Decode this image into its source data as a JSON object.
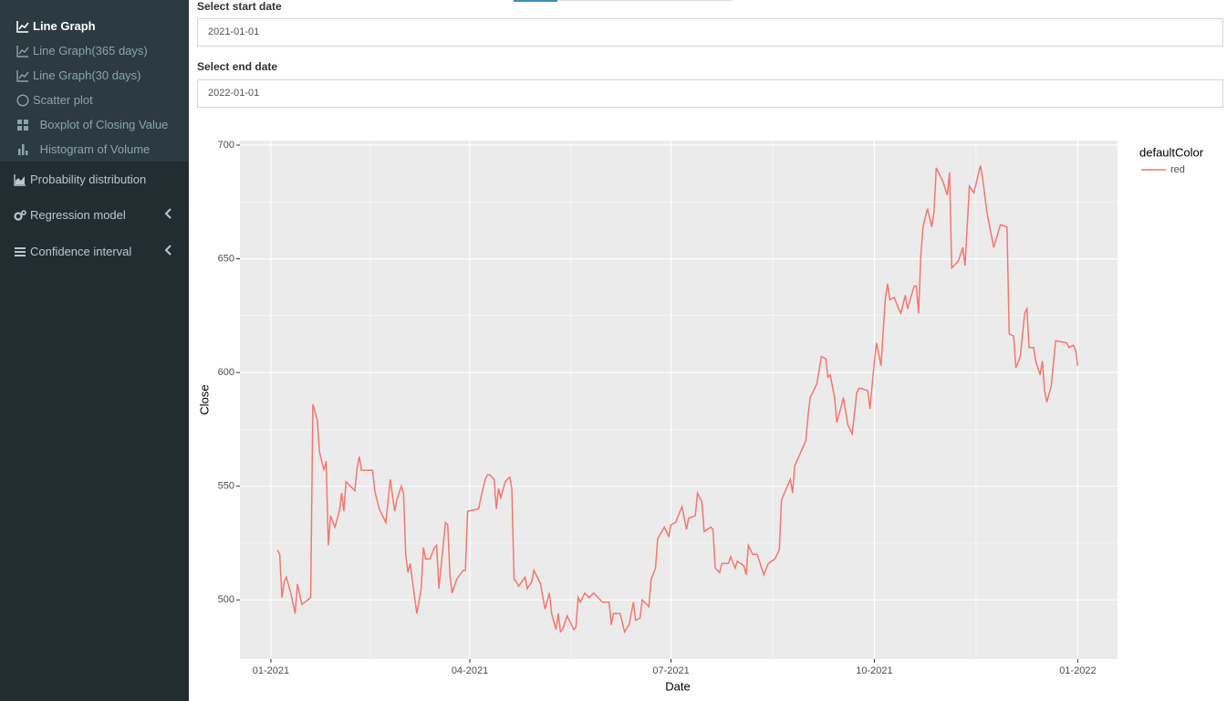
{
  "sidebar": {
    "items": [
      "Line Graph",
      "Line Graph(365 days)",
      "Line Graph(30 days)",
      "Scatter plot",
      "Boxplot of Closing Value",
      "Histogram of Volume",
      "Probability distribution",
      "Regression model",
      "Confidence interval"
    ]
  },
  "inputs": [
    {
      "label": "Select start date",
      "value": "2021-01-01"
    },
    {
      "label": "Select end date",
      "value": "2022-01-01"
    }
  ],
  "chart_data": {
    "type": "line",
    "xlabel": "Date",
    "ylabel": "Close",
    "legend_title": "defaultColor",
    "grid": true,
    "xlim": [
      -14,
      383
    ],
    "ylim": [
      474,
      702
    ],
    "xticks": [
      {
        "value": 0,
        "label": "01-2021"
      },
      {
        "value": 90,
        "label": "04-2021"
      },
      {
        "value": 181,
        "label": "07-2021"
      },
      {
        "value": 273,
        "label": "10-2021"
      },
      {
        "value": 365,
        "label": "01-2022"
      }
    ],
    "yticks": [
      500,
      550,
      600,
      650,
      700
    ],
    "x": [
      3,
      4,
      5,
      6,
      7,
      9,
      11,
      12,
      14,
      18,
      19,
      21,
      22,
      24,
      25,
      26,
      27,
      29,
      31,
      32,
      33,
      34,
      38,
      39,
      40,
      41,
      46,
      47,
      49,
      52,
      54,
      56,
      57,
      59,
      60,
      61,
      62,
      63,
      66,
      68,
      69,
      70,
      72,
      74,
      75,
      76,
      79,
      80,
      81,
      82,
      84,
      87,
      88,
      89,
      94,
      95,
      97,
      98,
      99,
      101,
      102,
      103,
      104,
      106,
      108,
      109,
      110,
      111,
      112,
      115,
      116,
      118,
      119,
      122,
      124,
      126,
      127,
      129,
      130,
      131,
      132,
      134,
      137,
      138,
      139,
      140,
      142,
      144,
      146,
      150,
      153,
      154,
      155,
      158,
      160,
      162,
      164,
      165,
      167,
      168,
      171,
      172,
      174,
      175,
      178,
      180,
      181,
      183,
      186,
      188,
      189,
      192,
      193,
      195,
      196,
      199,
      200,
      201,
      203,
      204,
      207,
      208,
      210,
      211,
      214,
      215,
      216,
      218,
      220,
      223,
      225,
      228,
      230,
      231,
      235,
      236,
      237,
      242,
      243,
      244,
      247,
      249,
      251,
      252,
      253,
      255,
      256,
      258,
      259,
      261,
      263,
      265,
      266,
      267,
      270,
      271,
      273,
      274,
      276,
      278,
      279,
      280,
      282,
      284,
      285,
      287,
      288,
      291,
      292,
      293,
      294,
      295,
      297,
      299,
      300,
      301,
      304,
      306,
      307,
      308,
      311,
      313,
      314,
      316,
      318,
      320,
      321,
      322,
      324,
      327,
      330,
      333,
      334,
      336,
      337,
      339,
      341,
      342,
      343,
      345,
      346,
      348,
      349,
      350,
      351,
      353,
      355,
      360,
      361,
      363,
      364,
      365
    ],
    "series": [
      {
        "name": "red",
        "color": "#F8766D",
        "values": [
          522,
          520,
          501,
          508,
          510,
          503,
          494,
          507,
          498,
          501,
          586,
          579,
          565,
          557,
          561,
          524,
          537,
          532,
          539,
          547,
          539,
          552,
          548,
          558,
          563,
          557,
          557,
          548,
          540,
          534,
          553,
          539,
          544,
          550,
          547,
          520,
          512,
          516,
          494,
          505,
          523,
          518,
          518,
          523,
          524,
          505,
          534,
          533,
          511,
          503,
          509,
          513,
          513,
          539,
          540,
          545,
          553,
          555,
          555,
          553,
          540,
          549,
          545,
          552,
          554,
          549,
          509,
          508,
          506,
          510,
          505,
          508,
          513,
          507,
          496,
          503,
          494,
          487,
          494,
          486,
          487,
          493,
          487,
          488,
          501,
          499,
          503,
          501,
          503,
          499,
          499,
          489,
          494,
          494,
          486,
          489,
          499,
          491,
          492,
          500,
          497,
          509,
          514,
          527,
          532,
          528,
          533,
          534,
          541,
          531,
          536,
          537,
          547,
          543,
          530,
          532,
          531,
          514,
          512,
          516,
          516,
          519,
          514,
          517,
          515,
          511,
          524,
          520,
          520,
          511,
          516,
          518,
          522,
          544,
          553,
          547,
          559,
          570,
          581,
          589,
          595,
          607,
          606,
          598,
          599,
          589,
          578,
          585,
          589,
          577,
          573,
          591,
          593,
          593,
          592,
          584,
          605,
          613,
          603,
          633,
          639,
          632,
          633,
          628,
          626,
          634,
          628,
          638,
          638,
          626,
          651,
          664,
          672,
          664,
          671,
          690,
          684,
          678,
          688,
          646,
          649,
          655,
          647,
          682,
          679,
          687,
          691,
          685,
          670,
          655,
          665,
          664,
          617,
          616,
          602,
          607,
          626,
          628,
          611,
          611,
          605,
          599,
          605,
          592,
          587,
          594,
          614,
          613,
          611,
          612,
          610,
          603
        ]
      }
    ]
  }
}
